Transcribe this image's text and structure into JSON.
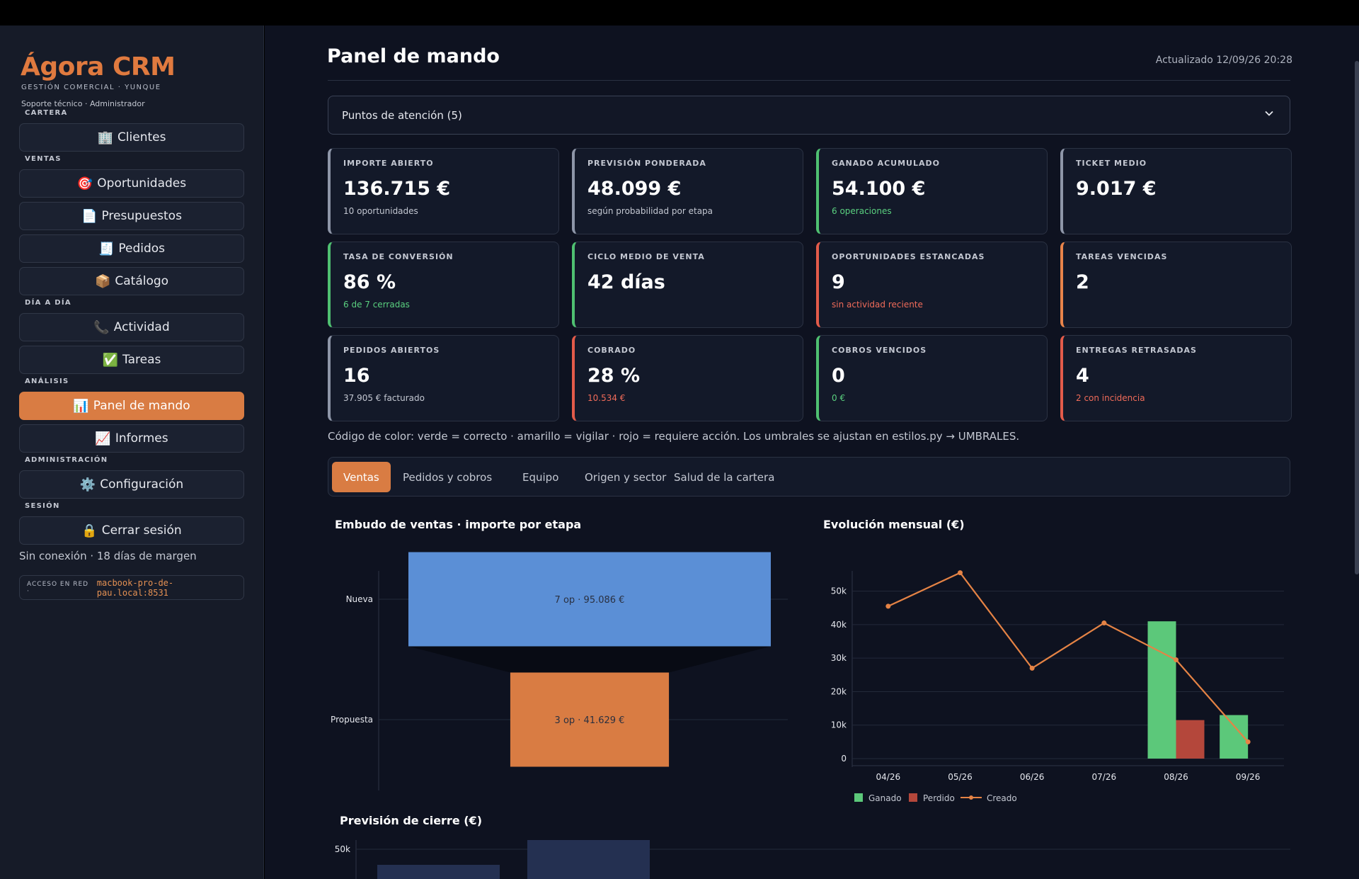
{
  "sidebar": {
    "brand": "Ágora CRM",
    "brand_sub": "GESTIÓN COMERCIAL · YUNQUE",
    "user": "Soporte técnico · Administrador",
    "sections": {
      "cartera": "CARTERA",
      "ventas": "VENTAS",
      "dia": "DÍA A DÍA",
      "analisis": "ANÁLISIS",
      "admin": "ADMINISTRACIÓN",
      "sesion": "SESIÓN"
    },
    "items": [
      {
        "icon": "🏢",
        "label": "Clientes"
      },
      {
        "icon": "🎯",
        "label": "Oportunidades"
      },
      {
        "icon": "📄",
        "label": "Presupuestos"
      },
      {
        "icon": "🧾",
        "label": "Pedidos"
      },
      {
        "icon": "📦",
        "label": "Catálogo"
      },
      {
        "icon": "📞",
        "label": "Actividad"
      },
      {
        "icon": "✅",
        "label": "Tareas"
      },
      {
        "icon": "📊",
        "label": "Panel de mando"
      },
      {
        "icon": "📈",
        "label": "Informes"
      },
      {
        "icon": "⚙️",
        "label": "Configuración"
      },
      {
        "icon": "🔒",
        "label": "Cerrar sesión"
      }
    ],
    "offline": "Sin conexión · 18 días de margen",
    "net_label": "ACCESO EN RED ·",
    "net_host": "macbook-pro-de-pau.local:8531"
  },
  "header": {
    "title": "Panel de mando",
    "updated": "Actualizado 12/09/26 20:28",
    "attention": "Puntos de atención (5)"
  },
  "kpis": [
    {
      "label": "IMPORTE ABIERTO",
      "value": "136.715 €",
      "sub": "10 oportunidades"
    },
    {
      "label": "PREVISIÓN PONDERADA",
      "value": "48.099 €",
      "sub": "según probabilidad por etapa"
    },
    {
      "label": "GANADO ACUMULADO",
      "value": "54.100 €",
      "sub": "6 operaciones"
    },
    {
      "label": "TICKET MEDIO",
      "value": "9.017 €",
      "sub": ""
    },
    {
      "label": "TASA DE CONVERSIÓN",
      "value": "86 %",
      "sub": "6 de 7 cerradas"
    },
    {
      "label": "CICLO MEDIO DE VENTA",
      "value": "42 días",
      "sub": ""
    },
    {
      "label": "OPORTUNIDADES ESTANCADAS",
      "value": "9",
      "sub": "sin actividad reciente"
    },
    {
      "label": "TAREAS VENCIDAS",
      "value": "2",
      "sub": ""
    },
    {
      "label": "PEDIDOS ABIERTOS",
      "value": "16",
      "sub": "37.905 € facturado"
    },
    {
      "label": "COBRADO",
      "value": "28 %",
      "sub": "10.534 €"
    },
    {
      "label": "COBROS VENCIDOS",
      "value": "0",
      "sub": "0 €"
    },
    {
      "label": "ENTREGAS RETRASADAS",
      "value": "4",
      "sub": "2 con incidencia"
    }
  ],
  "colors": {
    "accent": "#d97c43",
    "green": "#4fc071",
    "red": "#e35b4a",
    "orange": "#e8844a",
    "neutral": "#8e96a8",
    "funnel_blue": "#5b8fd6",
    "funnel_orange": "#d97c43",
    "bar_ganado": "#5cc87a",
    "bar_perdido": "#b4473b",
    "line_creado": "#e58345"
  },
  "color_note": "Código de color: verde = correcto · amarillo = vigilar · rojo = requiere acción. Los umbrales se ajustan en estilos.py → UMBRALES.",
  "tabs": [
    "Ventas",
    "Pedidos y cobros",
    "Equipo",
    "Origen y sector",
    "Salud de la cartera"
  ],
  "charts": {
    "funnel_title": "Embudo de ventas · importe por etapa",
    "monthly_title": "Evolución mensual (€)",
    "forecast_title": "Previsión de cierre (€)"
  },
  "chart_data": [
    {
      "type": "bar",
      "subtype": "funnel",
      "title": "Embudo de ventas · importe por etapa",
      "categories": [
        "Nueva",
        "Propuesta"
      ],
      "values": [
        95086,
        41629
      ],
      "counts": [
        7,
        3
      ],
      "labels": [
        "7 op · 95.086 €",
        "3 op · 41.629 €"
      ]
    },
    {
      "type": "bar",
      "title": "Evolución mensual (€)",
      "categories": [
        "04/26",
        "05/26",
        "06/26",
        "07/26",
        "08/26",
        "09/26"
      ],
      "y_ticks": [
        "0",
        "10k",
        "20k",
        "30k",
        "40k",
        "50k"
      ],
      "ylim": [
        0,
        55000
      ],
      "legend_position": "bottom-left",
      "series": [
        {
          "name": "Ganado",
          "type": "bar",
          "values": [
            0,
            0,
            0,
            0,
            41000,
            13000
          ]
        },
        {
          "name": "Perdido",
          "type": "bar",
          "values": [
            0,
            0,
            0,
            0,
            11500,
            0
          ]
        },
        {
          "name": "Creado",
          "type": "line",
          "values": [
            45500,
            55500,
            27000,
            40500,
            29500,
            5000
          ]
        }
      ]
    },
    {
      "type": "bar",
      "title": "Previsión de cierre (€)",
      "y_ticks": [
        "50k"
      ],
      "note": "partially visible"
    }
  ]
}
